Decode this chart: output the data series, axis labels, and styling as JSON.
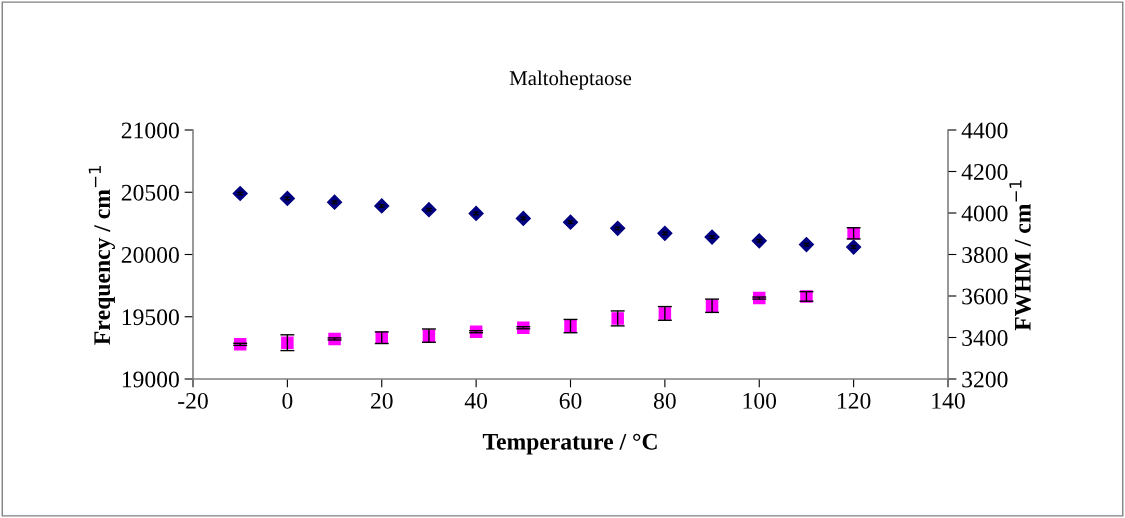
{
  "chart_data": {
    "type": "scatter",
    "title": "Maltoheptaose",
    "xlabel": "Temperature / °C",
    "ylabel": "Frequency / cm$^{−1}$",
    "y2label": "FWHM / cm$^{−1}$",
    "x": [
      -10,
      0,
      10,
      20,
      30,
      40,
      50,
      60,
      70,
      80,
      90,
      100,
      110,
      120
    ],
    "xlim": [
      -20,
      140
    ],
    "xticks": [
      -20,
      0,
      20,
      40,
      60,
      80,
      100,
      120,
      140
    ],
    "ylim": [
      19000,
      21000
    ],
    "yticks": [
      19000,
      19500,
      20000,
      20500,
      21000
    ],
    "y2lim": [
      3200,
      4400
    ],
    "y2ticks": [
      3200,
      3400,
      3600,
      3800,
      4000,
      4200,
      4400
    ],
    "grid": false,
    "legend": false,
    "series": [
      {
        "color": "#000080",
        "marker": "diamond",
        "values": [
          20490,
          20450,
          20420,
          20390,
          20360,
          20330,
          20290,
          20260,
          20210,
          20170,
          20140,
          20110,
          20080,
          20060
        ],
        "errors": [
          10,
          10,
          10,
          10,
          10,
          10,
          10,
          10,
          10,
          10,
          10,
          10,
          10,
          10
        ]
      },
      {
        "color": "#ff00ff",
        "marker": "square",
        "axis": "y2",
        "values": [
          3367,
          3375,
          3393,
          3399,
          3409,
          3428,
          3447,
          3455,
          3492,
          3516,
          3553,
          3590,
          3598,
          3902
        ],
        "errors": [
          5,
          38,
          5,
          28,
          32,
          5,
          5,
          32,
          36,
          33,
          32,
          5,
          23,
          27
        ]
      }
    ]
  }
}
